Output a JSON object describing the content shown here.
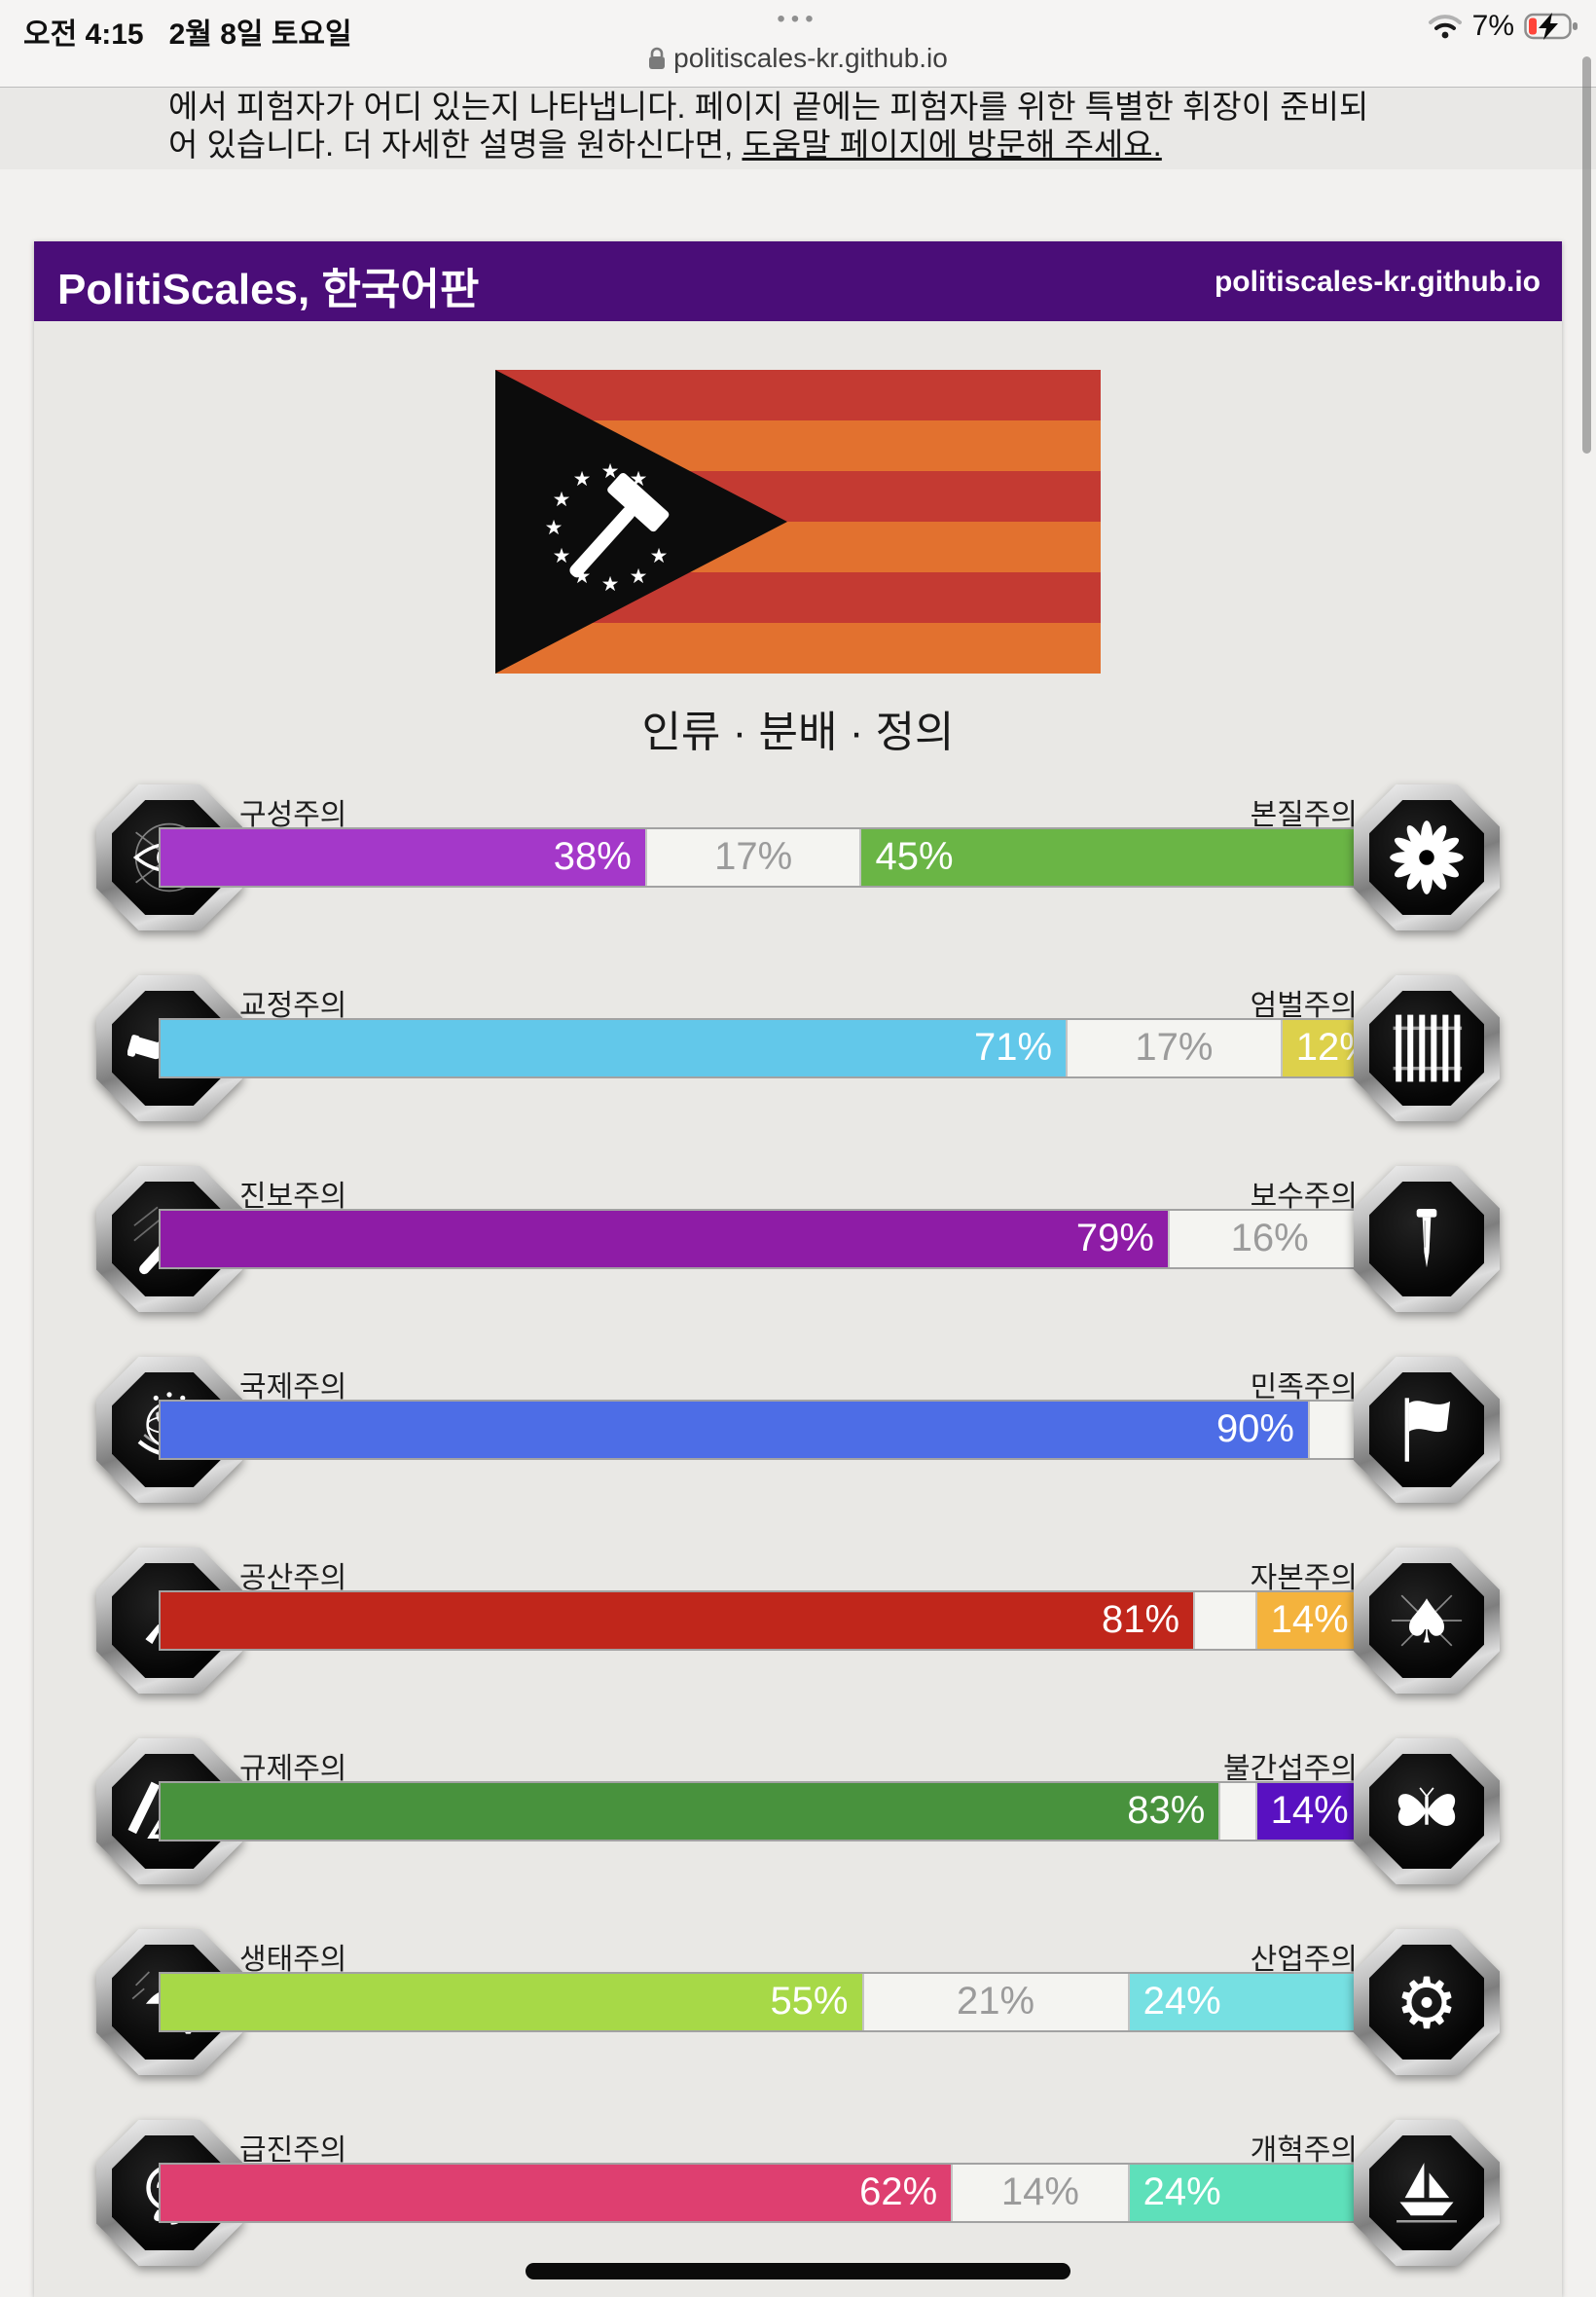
{
  "status_bar": {
    "time": "오전 4:15",
    "date": "2월 8일 토요일",
    "tab_dots": "•••",
    "battery_pct": "7%"
  },
  "url_bar": {
    "domain": "politiscales-kr.github.io"
  },
  "intro": {
    "line1": "에서 피험자가 어디 있는지 나타냅니다. 페이지 끝에는 피험자를 위한 특별한 휘장이 준비되",
    "line2_prefix": "어 있습니다. 더 자세한 설명을 원하신다면, ",
    "line2_link": "도움말 페이지에 방문해 주세요."
  },
  "header": {
    "title": "PolitiScales, 한국어판",
    "site": "politiscales-kr.github.io",
    "bg_color": "#4a0d78"
  },
  "flag": {
    "stripe_colors": [
      "#c43a32",
      "#e2712f",
      "#c43a32",
      "#e2712f",
      "#c43a32",
      "#e2712f"
    ],
    "triangle_color": "#0c0c0c",
    "emblem": "white hammer encircled by ten white stars"
  },
  "section_title": "인류 · 분배 · 정의",
  "axes": [
    {
      "left": {
        "label": "구성주의",
        "icon": "icon-eye",
        "pct": 38,
        "text": "38%",
        "color": "#a438c9"
      },
      "mid": {
        "pct": 17,
        "text": "17%"
      },
      "right": {
        "label": "본질주의",
        "icon": "icon-flower",
        "pct": 45,
        "text": "45%",
        "color": "#6ab545"
      }
    },
    {
      "left": {
        "label": "교정주의",
        "icon": "icon-handshake",
        "pct": 71,
        "text": "71%",
        "color": "#62c8ea"
      },
      "mid": {
        "pct": 17,
        "text": "17%"
      },
      "right": {
        "label": "엄벌주의",
        "icon": "icon-prison-bars",
        "pct": 12,
        "text": "12%",
        "color": "#ddd14b"
      }
    },
    {
      "left": {
        "label": "진보주의",
        "icon": "icon-brush",
        "pct": 79,
        "text": "79%",
        "color": "#8e1ca6"
      },
      "mid": {
        "pct": 16,
        "text": "16%"
      },
      "right": {
        "label": "보수주의",
        "icon": "icon-nail",
        "pct": 5,
        "text": "",
        "color": "#8d1a10"
      }
    },
    {
      "left": {
        "label": "국제주의",
        "icon": "icon-globe",
        "pct": 90,
        "text": "90%",
        "color": "#4d6de6"
      },
      "mid": {
        "pct": 5,
        "text": ""
      },
      "right": {
        "label": "민족주의",
        "icon": "icon-flag",
        "pct": 5,
        "text": "",
        "color": "#ef8b25"
      }
    },
    {
      "left": {
        "label": "공산주의",
        "icon": "icon-hammer-sickle",
        "pct": 81,
        "text": "81%",
        "color": "#c0261b"
      },
      "mid": {
        "pct": 5,
        "text": ""
      },
      "right": {
        "label": "자본주의",
        "icon": "icon-spade",
        "pct": 14,
        "text": "14%",
        "color": "#f4b33d"
      }
    },
    {
      "left": {
        "label": "규제주의",
        "icon": "icon-drafting",
        "pct": 83,
        "text": "83%",
        "color": "#48923d"
      },
      "mid": {
        "pct": 3,
        "text": ""
      },
      "right": {
        "label": "불간섭주의",
        "icon": "icon-butterfly",
        "pct": 14,
        "text": "14%",
        "color": "#5911c1"
      }
    },
    {
      "left": {
        "label": "생태주의",
        "icon": "icon-mushroom",
        "pct": 55,
        "text": "55%",
        "color": "#a7d947"
      },
      "mid": {
        "pct": 21,
        "text": "21%"
      },
      "right": {
        "label": "산업주의",
        "icon": "icon-gear",
        "pct": 24,
        "text": "24%",
        "color": "#76e0e2"
      }
    },
    {
      "left": {
        "label": "급진주의",
        "icon": "icon-rose",
        "pct": 62,
        "text": "62%",
        "color": "#de3f70"
      },
      "mid": {
        "pct": 14,
        "text": "14%"
      },
      "right": {
        "label": "개혁주의",
        "icon": "icon-ship",
        "pct": 24,
        "text": "24%",
        "color": "#5ee0ba"
      }
    }
  ]
}
